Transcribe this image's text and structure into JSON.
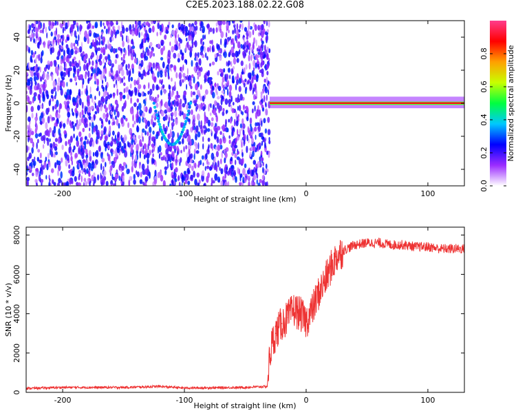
{
  "title": "C2E5.2023.188.02.22.G08",
  "chart_data": [
    {
      "type": "heatmap",
      "xlabel": "Height of straight line (km)",
      "ylabel": "Frequency (Hz)",
      "xlim": [
        -230,
        130
      ],
      "ylim": [
        -50,
        50
      ],
      "xticks": [
        -200,
        -100,
        0,
        100
      ],
      "yticks": [
        -40,
        -20,
        0,
        20,
        40
      ],
      "colorbar": {
        "label": "Normalized spectral amplitude",
        "range": [
          0,
          1
        ],
        "ticks": [
          0.0,
          0.2,
          0.4,
          0.6,
          0.8
        ],
        "tick_labels": [
          "0.0",
          "0.2",
          "0.4",
          "0.6",
          "0.8"
        ],
        "colors": [
          "#ffffff",
          "#9b2cff",
          "#0000ff",
          "#00c8ff",
          "#00ff40",
          "#c8ff00",
          "#ffa000",
          "#ff0000",
          "#ff3c8c"
        ]
      },
      "features": [
        {
          "name": "noise region",
          "x": [
            -230,
            -30
          ],
          "y": [
            -50,
            50
          ],
          "amplitude": 0.1
        },
        {
          "name": "Doppler dip",
          "x": [
            -125,
            -95
          ],
          "y_min": -25,
          "amplitude": 0.3
        },
        {
          "name": "carrier line",
          "x": [
            -30,
            130
          ],
          "y": [
            0,
            1
          ],
          "amplitude": 0.9
        }
      ]
    },
    {
      "type": "line",
      "xlabel": "Height of straight line (km)",
      "ylabel": "SNR (10 * v/v)",
      "xlim": [
        -230,
        130
      ],
      "ylim": [
        0,
        8400
      ],
      "xticks": [
        -200,
        -100,
        0,
        100
      ],
      "yticks": [
        0,
        2000,
        4000,
        6000,
        8000
      ],
      "color": "#ee3333",
      "series": [
        {
          "x": [
            -230,
            -200,
            -150,
            -120,
            -100,
            -50,
            -32,
            -30,
            -28,
            -25,
            -20,
            -15,
            -10,
            -5,
            0,
            5,
            10,
            15,
            20,
            25,
            30,
            40,
            50,
            60,
            70,
            80,
            90,
            100,
            110,
            120,
            130
          ],
          "values": [
            200,
            250,
            250,
            300,
            220,
            250,
            300,
            1800,
            2500,
            3000,
            3500,
            3800,
            4200,
            4000,
            3600,
            4200,
            5000,
            5600,
            6300,
            6900,
            7200,
            7500,
            7600,
            7600,
            7500,
            7500,
            7400,
            7400,
            7300,
            7300,
            7300
          ]
        }
      ]
    }
  ]
}
